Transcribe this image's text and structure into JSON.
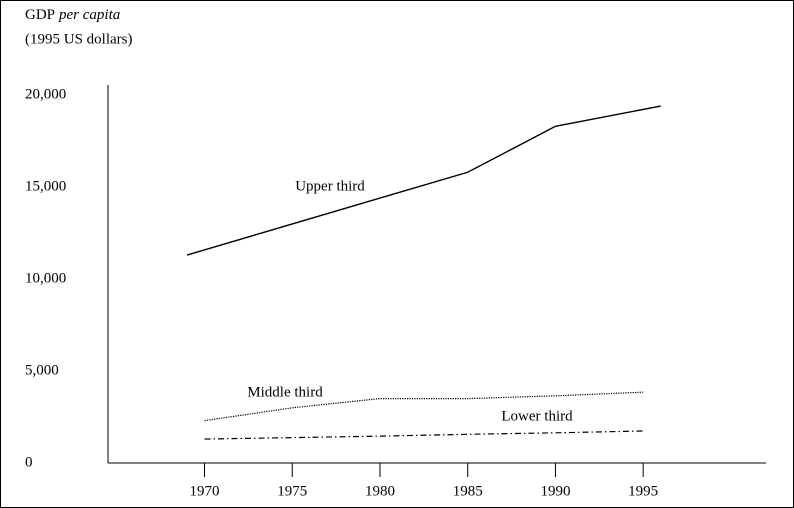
{
  "chart_data": {
    "type": "line",
    "ylabel": [
      "GDP",
      "per capita",
      "(1995 US dollars)"
    ],
    "xlim": [
      1964.5,
      2002
    ],
    "xticks": [
      1970,
      1975,
      1980,
      1985,
      1990,
      1995
    ],
    "ylim": [
      0,
      20000
    ],
    "yticks": [
      0,
      {
        "value": 5000,
        "label": "5,000"
      },
      {
        "value": 10000,
        "label": "10,000"
      },
      {
        "value": 15000,
        "label": "15,000"
      },
      {
        "value": 20000,
        "label": "20,000"
      }
    ],
    "grid": false,
    "series": [
      {
        "name": "Upper third",
        "color": "#000000",
        "dash": "solid",
        "x": [
          1969,
          1980,
          1985,
          1990,
          1996
        ],
        "values": [
          11300,
          14400,
          15800,
          18300,
          19400
        ]
      },
      {
        "name": "Middle third",
        "color": "#000000",
        "dash": "dotted",
        "x": [
          1970,
          1975,
          1980,
          1985,
          1990,
          1995
        ],
        "values": [
          2300,
          3000,
          3500,
          3500,
          3650,
          3850
        ]
      },
      {
        "name": "Lower third",
        "color": "#000000",
        "dash": "dashdot",
        "x": [
          1970,
          1975,
          1980,
          1985,
          1990,
          1995
        ],
        "values": [
          1300,
          1380,
          1460,
          1560,
          1640,
          1740
        ]
      }
    ]
  }
}
